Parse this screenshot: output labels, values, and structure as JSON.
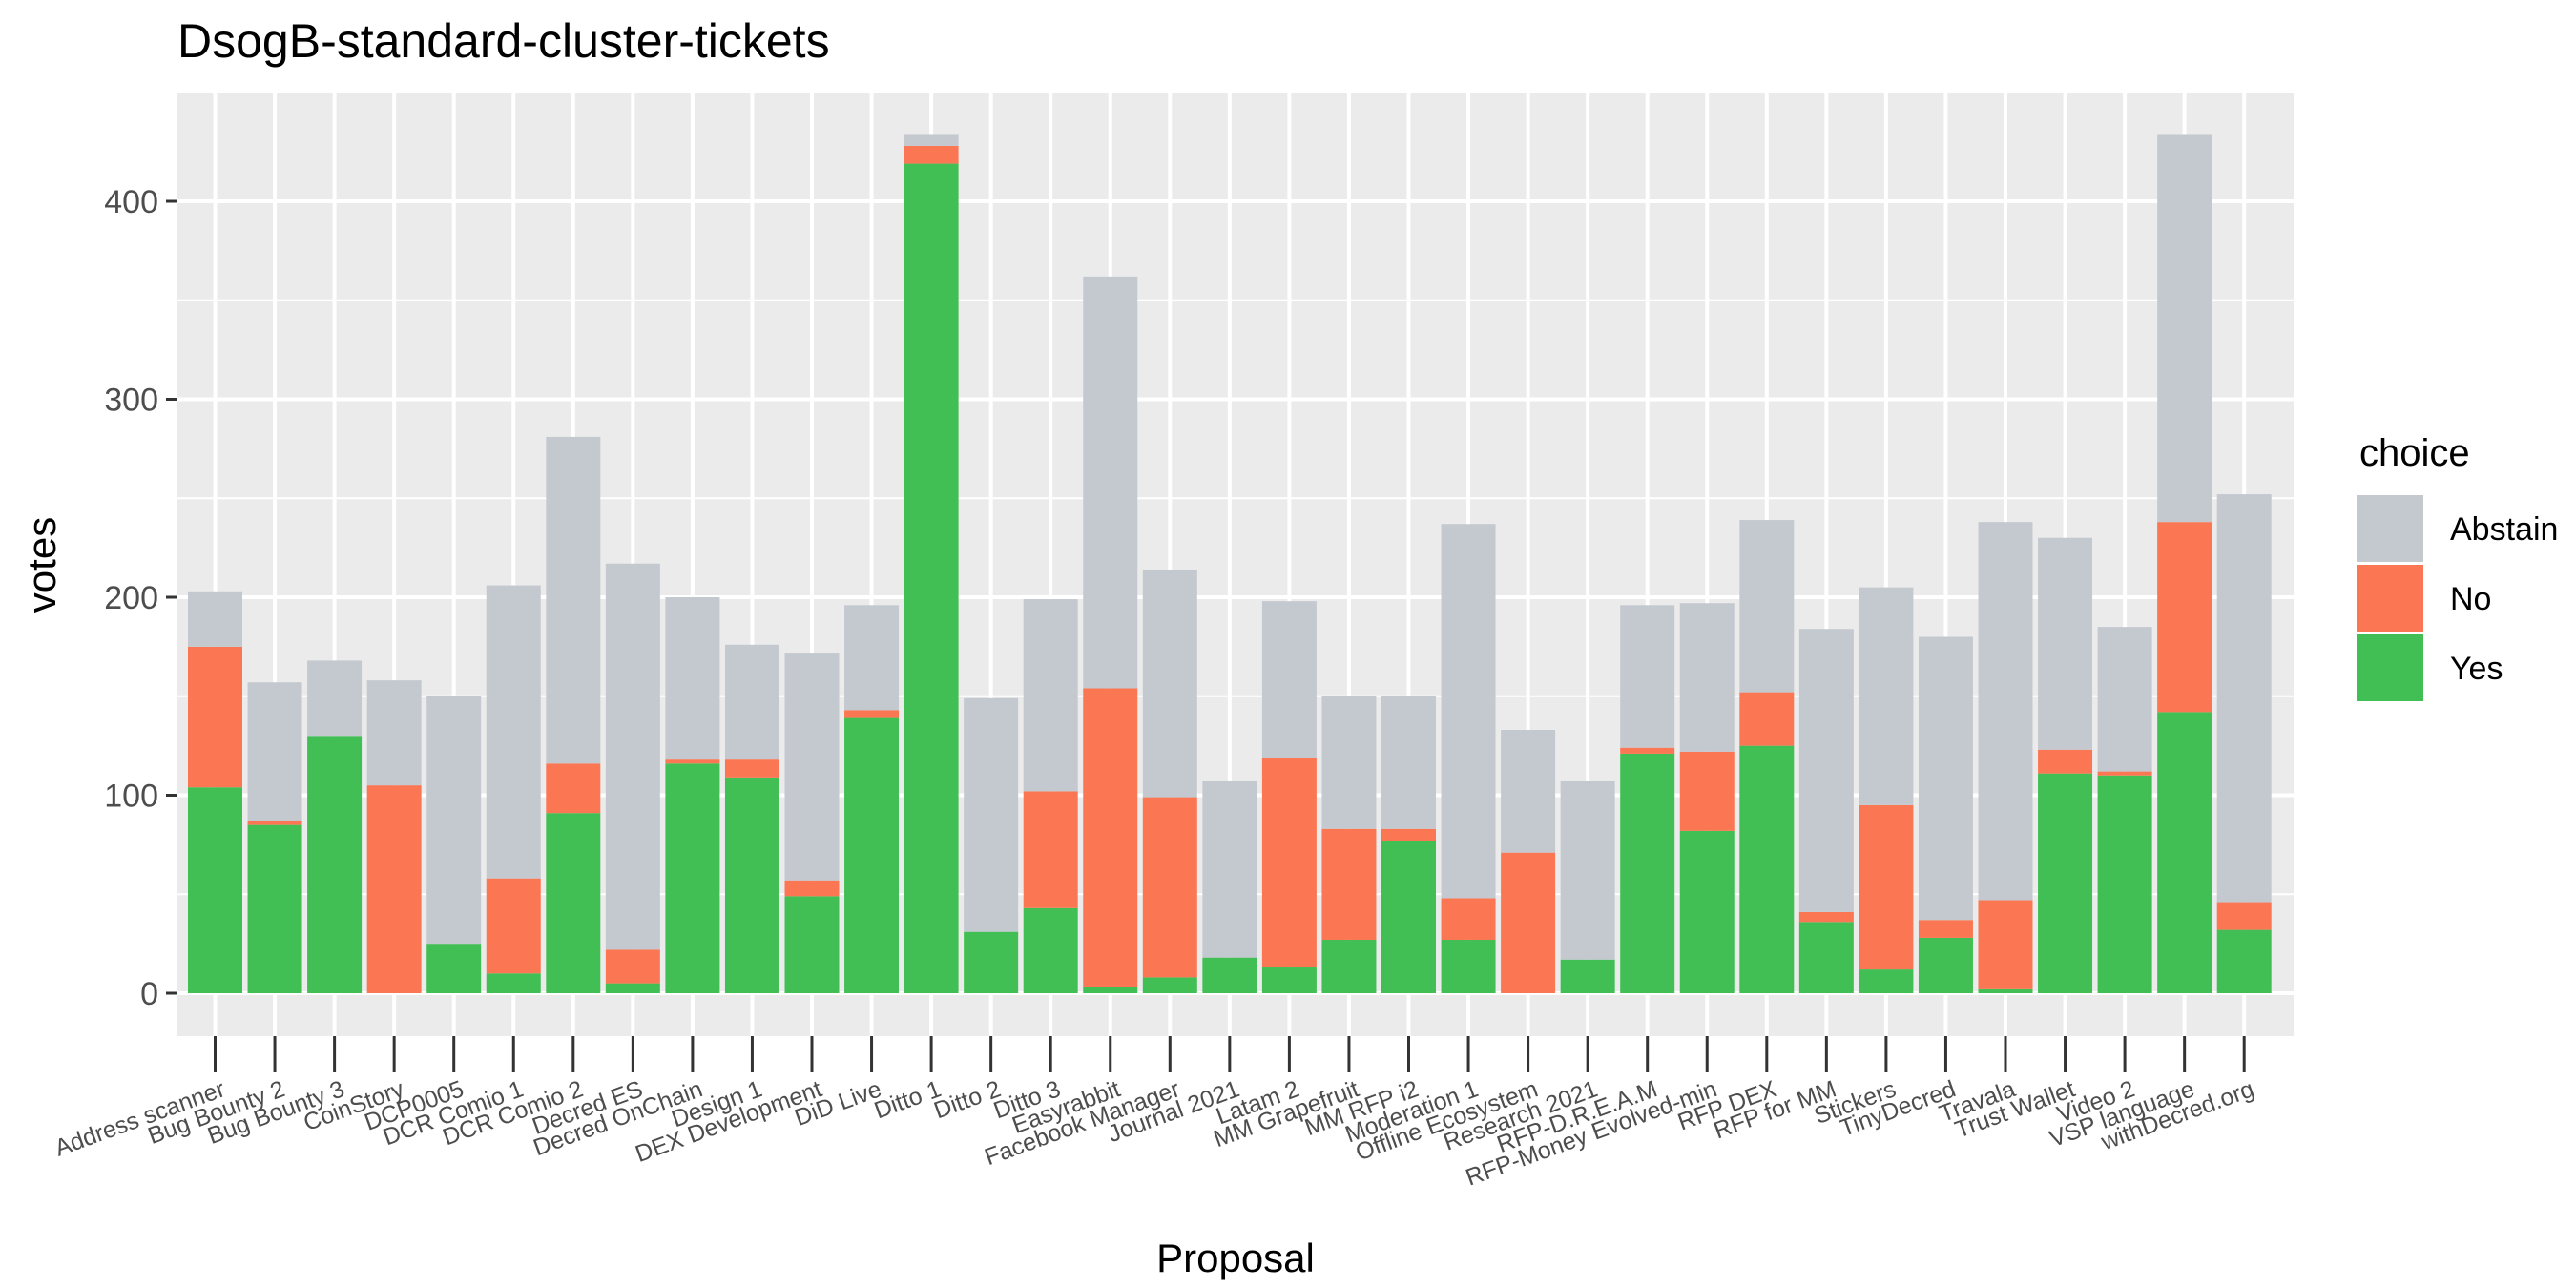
{
  "chart_data": {
    "type": "bar",
    "stacked": true,
    "title": "DsogB-standard-cluster-tickets",
    "xlabel": "Proposal",
    "ylabel": "votes",
    "ylim": [
      0,
      450
    ],
    "yticks": [
      0,
      100,
      200,
      300,
      400
    ],
    "grid": true,
    "legend": {
      "title": "choice",
      "position": "right",
      "entries": [
        "Abstain",
        "No",
        "Yes"
      ]
    },
    "colors": {
      "Abstain": "#c4c9d0",
      "No": "#fb7652",
      "Yes": "#41bf54"
    },
    "categories": [
      "Address scanner",
      "Bug Bounty 2",
      "Bug Bounty 3",
      "CoinStory",
      "DCP0005",
      "DCR Comio 1",
      "DCR Comio 2",
      "Decred ES",
      "Decred OnChain",
      "Design 1",
      "DEX Development",
      "DiD Live",
      "Ditto 1",
      "Ditto 2",
      "Ditto 3",
      "Easyrabbit",
      "Facebook Manager",
      "Journal 2021",
      "Latam 2",
      "MM Grapefruit",
      "MM RFP i2",
      "Moderation 1",
      "Offline Ecosystem",
      "Research 2021",
      "RFP-D.R.E.A.M",
      "RFP-Money Evolved-min",
      "RFP DEX",
      "RFP for MM",
      "Stickers",
      "TinyDecred",
      "Travala",
      "Trust Wallet",
      "Video 2",
      "VSP language",
      "withDecred.org"
    ],
    "series": [
      {
        "name": "Yes",
        "values": [
          104,
          85,
          130,
          0,
          25,
          10,
          91,
          5,
          116,
          109,
          49,
          139,
          419,
          31,
          43,
          3,
          8,
          18,
          13,
          27,
          77,
          27,
          0,
          17,
          121,
          82,
          125,
          36,
          12,
          28,
          2,
          111,
          110,
          142,
          32
        ]
      },
      {
        "name": "No",
        "values": [
          71,
          2,
          0,
          105,
          0,
          48,
          25,
          17,
          2,
          9,
          8,
          4,
          9,
          0,
          59,
          151,
          91,
          0,
          106,
          56,
          6,
          21,
          71,
          0,
          3,
          40,
          27,
          5,
          83,
          9,
          45,
          12,
          2,
          96,
          14
        ]
      },
      {
        "name": "Abstain",
        "values": [
          28,
          70,
          38,
          53,
          125,
          148,
          165,
          195,
          82,
          58,
          115,
          53,
          6,
          118,
          97,
          208,
          115,
          89,
          79,
          67,
          67,
          189,
          62,
          90,
          72,
          75,
          87,
          143,
          110,
          143,
          191,
          107,
          73,
          196,
          206
        ]
      }
    ]
  }
}
